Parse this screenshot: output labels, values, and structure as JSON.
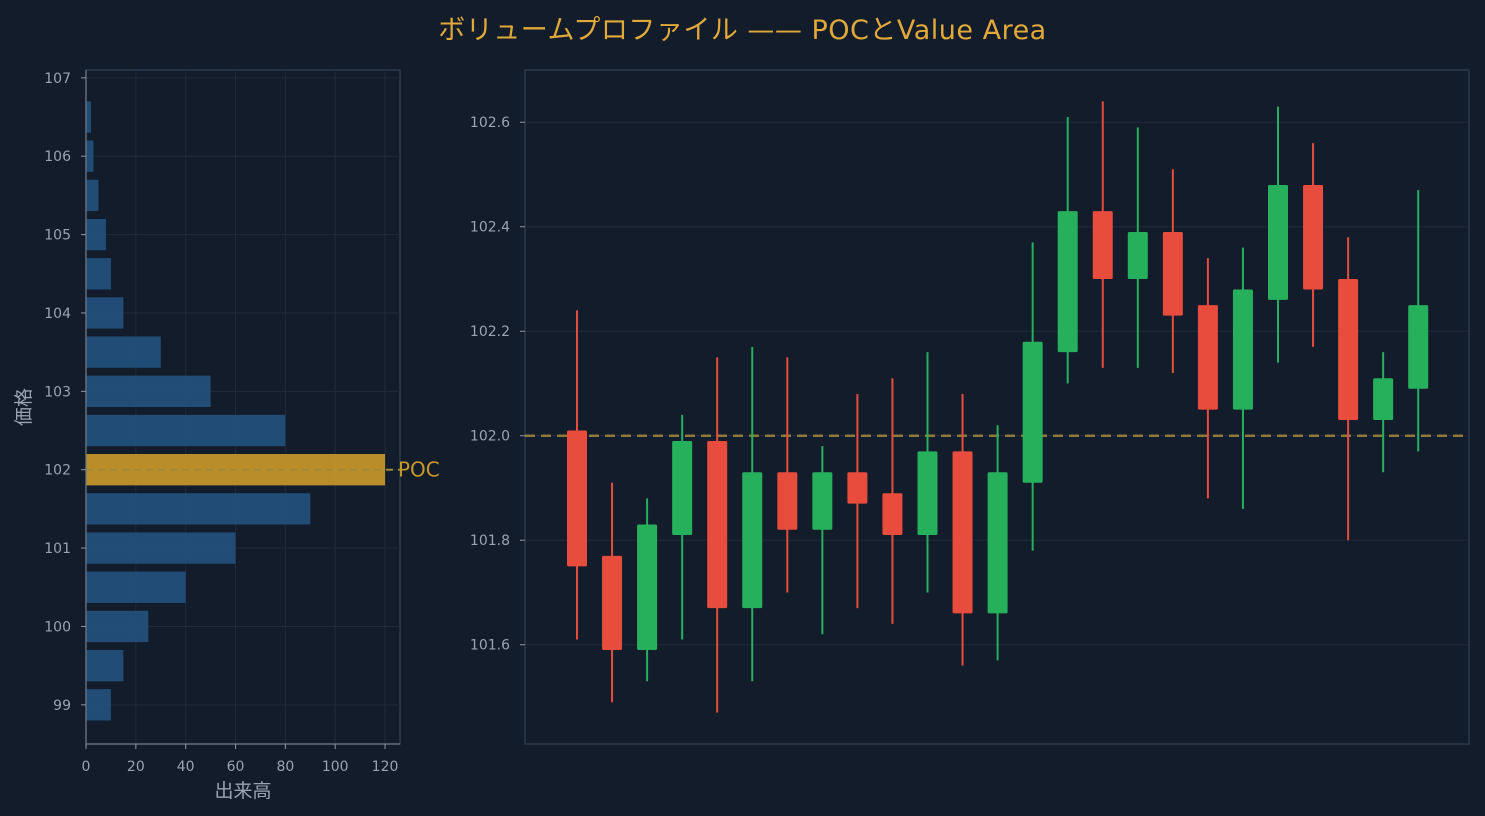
{
  "title": "ボリュームプロファイル —— POCとValue Area",
  "colors": {
    "background": "#131c2b",
    "panel_border": "#2b3a4d",
    "grid": "#1f2a3a",
    "volume_bar": "#22527d",
    "poc_bar": "#c8982a",
    "poc_line": "#a08a3a",
    "up_candle": "#26b05c",
    "down_candle": "#e84c3d",
    "title": "#e0a93a"
  },
  "chart_data": [
    {
      "type": "bar",
      "orientation": "horizontal",
      "title": "",
      "xlabel": "出来高",
      "ylabel": "価格",
      "xlim": [
        0,
        126
      ],
      "ylim": [
        98.5,
        107.1
      ],
      "xticks": [
        0,
        20,
        40,
        60,
        80,
        100,
        120
      ],
      "yticks": [
        99,
        100,
        101,
        102,
        103,
        104,
        105,
        106,
        107
      ],
      "grid": true,
      "price_levels": [
        99.0,
        99.5,
        100.0,
        100.5,
        101.0,
        101.5,
        102.0,
        102.5,
        103.0,
        103.5,
        104.0,
        104.5,
        105.0,
        105.5,
        106.0,
        106.5
      ],
      "volumes": [
        10,
        15,
        25,
        40,
        60,
        90,
        120,
        80,
        50,
        30,
        15,
        10,
        8,
        5,
        3,
        2
      ],
      "poc_price": 102.0,
      "poc_label": "POC"
    },
    {
      "type": "candlestick",
      "title": "",
      "xlabel": "",
      "ylabel": "",
      "ylim": [
        101.41,
        102.7
      ],
      "yticks": [
        101.6,
        101.8,
        102.0,
        102.2,
        102.4,
        102.6
      ],
      "grid": true,
      "poc_line": 102.0,
      "candles": [
        {
          "open": 102.01,
          "high": 102.24,
          "low": 101.61,
          "close": 101.75
        },
        {
          "open": 101.77,
          "high": 101.91,
          "low": 101.49,
          "close": 101.59
        },
        {
          "open": 101.59,
          "high": 101.88,
          "low": 101.53,
          "close": 101.83
        },
        {
          "open": 101.81,
          "high": 102.04,
          "low": 101.61,
          "close": 101.99
        },
        {
          "open": 101.99,
          "high": 102.15,
          "low": 101.47,
          "close": 101.67
        },
        {
          "open": 101.67,
          "high": 102.17,
          "low": 101.53,
          "close": 101.93
        },
        {
          "open": 101.93,
          "high": 102.15,
          "low": 101.7,
          "close": 101.82
        },
        {
          "open": 101.82,
          "high": 101.98,
          "low": 101.62,
          "close": 101.93
        },
        {
          "open": 101.93,
          "high": 102.08,
          "low": 101.67,
          "close": 101.87
        },
        {
          "open": 101.89,
          "high": 102.11,
          "low": 101.64,
          "close": 101.81
        },
        {
          "open": 101.81,
          "high": 102.16,
          "low": 101.7,
          "close": 101.97
        },
        {
          "open": 101.97,
          "high": 102.08,
          "low": 101.56,
          "close": 101.66
        },
        {
          "open": 101.66,
          "high": 102.02,
          "low": 101.57,
          "close": 101.93
        },
        {
          "open": 101.91,
          "high": 102.37,
          "low": 101.78,
          "close": 102.18
        },
        {
          "open": 102.16,
          "high": 102.61,
          "low": 102.1,
          "close": 102.43
        },
        {
          "open": 102.43,
          "high": 102.64,
          "low": 102.13,
          "close": 102.3
        },
        {
          "open": 102.3,
          "high": 102.59,
          "low": 102.13,
          "close": 102.39
        },
        {
          "open": 102.39,
          "high": 102.51,
          "low": 102.12,
          "close": 102.23
        },
        {
          "open": 102.25,
          "high": 102.34,
          "low": 101.88,
          "close": 102.05
        },
        {
          "open": 102.05,
          "high": 102.36,
          "low": 101.86,
          "close": 102.28
        },
        {
          "open": 102.26,
          "high": 102.63,
          "low": 102.14,
          "close": 102.48
        },
        {
          "open": 102.48,
          "high": 102.56,
          "low": 102.17,
          "close": 102.28
        },
        {
          "open": 102.3,
          "high": 102.38,
          "low": 101.8,
          "close": 102.03
        },
        {
          "open": 102.03,
          "high": 102.16,
          "low": 101.93,
          "close": 102.11
        },
        {
          "open": 102.09,
          "high": 102.47,
          "low": 101.97,
          "close": 102.25
        }
      ]
    }
  ]
}
